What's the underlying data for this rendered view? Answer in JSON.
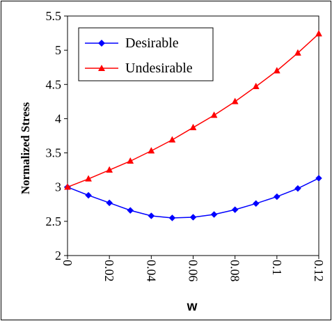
{
  "chart_data": {
    "type": "line",
    "title": "",
    "xlabel": "w",
    "ylabel": "Normalized Stress",
    "xlim": [
      0,
      0.12
    ],
    "ylim": [
      2,
      5.5
    ],
    "x_ticks": [
      "0",
      "0.02",
      "0.04",
      "0.06",
      "0.08",
      "0.1",
      "0.12"
    ],
    "y_ticks": [
      "2",
      "2.5",
      "3",
      "3.5",
      "4",
      "4.5",
      "5",
      "5.5"
    ],
    "grid": false,
    "legend_position": "top-left",
    "x": [
      0,
      0.01,
      0.02,
      0.03,
      0.04,
      0.05,
      0.06,
      0.07,
      0.08,
      0.09,
      0.1,
      0.11,
      0.12
    ],
    "series": [
      {
        "name": "Desirable",
        "marker": "diamond",
        "color": "#0000ff",
        "values": [
          3.0,
          2.88,
          2.77,
          2.66,
          2.58,
          2.55,
          2.56,
          2.6,
          2.67,
          2.76,
          2.86,
          2.98,
          3.13
        ]
      },
      {
        "name": "Undesirable",
        "marker": "triangle",
        "color": "#ff0000",
        "values": [
          3.0,
          3.12,
          3.25,
          3.38,
          3.53,
          3.69,
          3.87,
          4.05,
          4.25,
          4.47,
          4.7,
          4.96,
          5.24
        ]
      }
    ]
  }
}
